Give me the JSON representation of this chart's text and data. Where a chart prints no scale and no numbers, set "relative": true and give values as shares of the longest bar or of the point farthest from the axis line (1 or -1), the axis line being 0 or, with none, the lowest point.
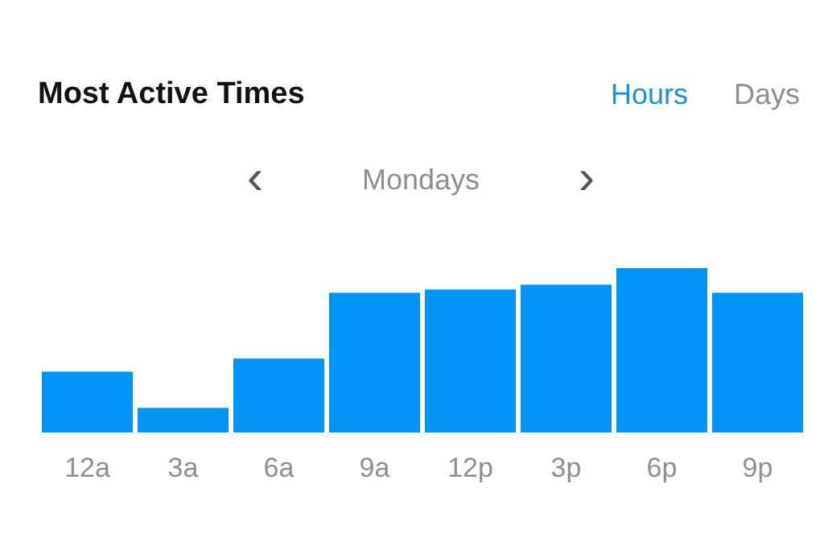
{
  "chart_data": {
    "type": "bar",
    "title": "Most Active Times",
    "relative": true,
    "categories": [
      "12a",
      "3a",
      "6a",
      "9a",
      "12p",
      "3p",
      "6p",
      "9p"
    ],
    "values": [
      0.37,
      0.15,
      0.45,
      0.85,
      0.87,
      0.9,
      1,
      0.85
    ],
    "color": "#0095f6",
    "grid": false,
    "annotations": [
      "Hours",
      "Days",
      "‹",
      "Mondays",
      "›"
    ]
  }
}
